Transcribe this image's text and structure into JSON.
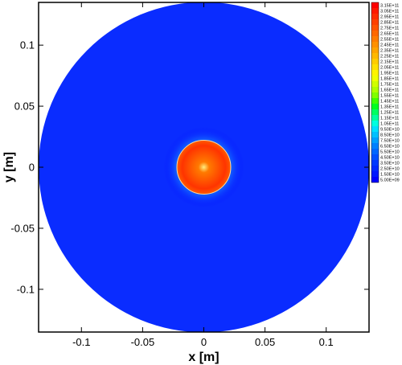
{
  "chart_data": {
    "type": "heatmap",
    "title": "",
    "xlabel": "x [m]",
    "ylabel": "y [m]",
    "xlim": [
      -0.135,
      0.135
    ],
    "ylim": [
      -0.135,
      0.135
    ],
    "x_ticks": [
      -0.1,
      -0.05,
      0,
      0.05,
      0.1
    ],
    "x_tick_labels": [
      "-0.1",
      "-0.05",
      "0",
      "0.05",
      "0.1"
    ],
    "y_ticks": [
      -0.1,
      -0.05,
      0,
      0.05,
      0.1
    ],
    "y_tick_labels": [
      "-0.1",
      "-0.05",
      "0",
      "0.05",
      "0.1"
    ],
    "grid": false,
    "domain": {
      "shape": "disk",
      "center": [
        0,
        0
      ],
      "outer_radius": 0.135
    },
    "field_regions": [
      {
        "name": "outer",
        "r_min": 0.022,
        "r_max": 0.135,
        "value_approx": 5000000000.0
      },
      {
        "name": "core",
        "r_min": 0,
        "r_max": 0.022,
        "value_approx": 290000000000.0
      }
    ],
    "colorbar": {
      "position": "right",
      "levels": [
        "3.15E+11",
        "3.05E+11",
        "2.95E+11",
        "2.85E+11",
        "2.75E+11",
        "2.65E+11",
        "2.55E+11",
        "2.45E+11",
        "2.35E+11",
        "2.25E+11",
        "2.15E+11",
        "2.05E+11",
        "1.95E+11",
        "1.85E+11",
        "1.75E+11",
        "1.65E+11",
        "1.55E+11",
        "1.45E+11",
        "1.35E+11",
        "1.25E+11",
        "1.15E+11",
        "1.05E+11",
        "9.50E+10",
        "8.50E+10",
        "7.50E+10",
        "6.50E+10",
        "5.50E+10",
        "4.50E+10",
        "3.50E+10",
        "2.50E+10",
        "1.50E+10",
        "5.00E+09"
      ],
      "colors": [
        "#ff0000",
        "#ff1800",
        "#ff2c00",
        "#ff4000",
        "#ff5400",
        "#ff6800",
        "#ff7c00",
        "#ff9000",
        "#ffa400",
        "#ffb800",
        "#ffcc00",
        "#ffe000",
        "#fff400",
        "#f0ff00",
        "#d0ff00",
        "#b0ff00",
        "#80ff00",
        "#40ff00",
        "#00ff20",
        "#00ff60",
        "#00ffa0",
        "#00ffe0",
        "#00e0ff",
        "#00c0ff",
        "#00a0ff",
        "#0080ff",
        "#0068ff",
        "#0050ff",
        "#0038ff",
        "#0028ff",
        "#0018ff",
        "#0000ff"
      ]
    }
  }
}
